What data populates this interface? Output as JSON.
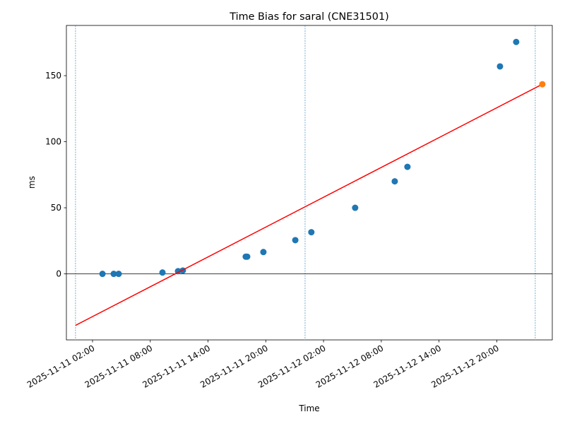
{
  "chart_data": {
    "type": "scatter",
    "title": "Time Bias for saral (CNE31501)",
    "x_label": "Time",
    "y_label": "ms",
    "x": [
      "2025-11-11 03:02",
      "2025-11-11 04:12",
      "2025-11-11 04:43",
      "2025-11-11 09:16",
      "2025-11-11 10:53",
      "2025-11-11 11:23",
      "2025-11-11 17:55",
      "2025-11-11 18:04",
      "2025-11-11 19:45",
      "2025-11-11 23:04",
      "2025-11-12 00:44",
      "2025-11-12 05:17",
      "2025-11-12 09:24",
      "2025-11-12 10:43",
      "2025-11-12 20:20",
      "2025-11-12 22:01"
    ],
    "values": [
      0,
      0,
      0,
      1,
      2,
      2.5,
      13,
      13,
      16.5,
      25.5,
      31.5,
      50,
      70,
      81,
      157,
      175.5
    ],
    "color": "#1f77b4",
    "highlight": {
      "x": "2025-11-13 00:44",
      "value": 143.5,
      "color": "#ff7f0e"
    },
    "fit": {
      "x": [
        "2025-11-11 00:14",
        "2025-11-13 00:44"
      ],
      "values": [
        -39,
        143.5
      ],
      "color": "#ff0000"
    },
    "vlines": {
      "x": [
        "2025-11-11 00:14",
        "2025-11-12 00:05",
        "2025-11-13 00:00"
      ],
      "color": "#1f77b4"
    },
    "hline": 0,
    "xlim": [
      "2025-11-10 23:17",
      "2025-11-13 01:46"
    ],
    "xticks": [
      "2025-11-11 02:00",
      "2025-11-11 08:00",
      "2025-11-11 14:00",
      "2025-11-11 20:00",
      "2025-11-12 02:00",
      "2025-11-12 08:00",
      "2025-11-12 14:00",
      "2025-11-12 20:00"
    ],
    "ylim": [
      -50,
      188
    ],
    "yticks": [
      0,
      50,
      100,
      150
    ]
  }
}
